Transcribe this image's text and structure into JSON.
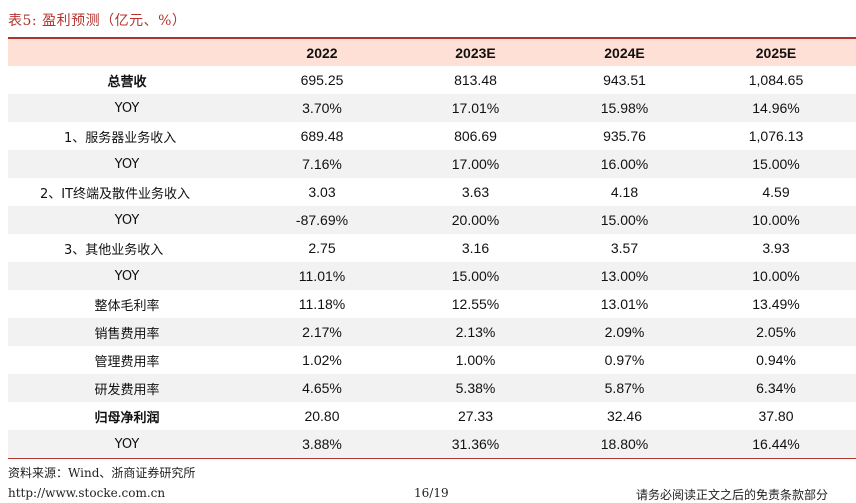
{
  "title": "表5:  盈利预测（亿元、%）",
  "table": {
    "headers": [
      "",
      "2022",
      "2023E",
      "2024E",
      "2025E"
    ],
    "rows": [
      {
        "label": "总营收",
        "values": [
          "695.25",
          "813.48",
          "943.51",
          "1,084.65"
        ],
        "bold": true
      },
      {
        "label": "YOY",
        "values": [
          "3.70%",
          "17.01%",
          "15.98%",
          "14.96%"
        ]
      },
      {
        "label": "1、服务器业务收入",
        "values": [
          "689.48",
          "806.69",
          "935.76",
          "1,076.13"
        ]
      },
      {
        "label": "YOY",
        "values": [
          "7.16%",
          "17.00%",
          "16.00%",
          "15.00%"
        ]
      },
      {
        "label": "2、IT终端及散件业务收入",
        "values": [
          "3.03",
          "3.63",
          "4.18",
          "4.59"
        ]
      },
      {
        "label": "YOY",
        "values": [
          "-87.69%",
          "20.00%",
          "15.00%",
          "10.00%"
        ]
      },
      {
        "label": "3、其他业务收入",
        "values": [
          "2.75",
          "3.16",
          "3.57",
          "3.93"
        ]
      },
      {
        "label": "YOY",
        "values": [
          "11.01%",
          "15.00%",
          "13.00%",
          "10.00%"
        ]
      },
      {
        "label": "整体毛利率",
        "values": [
          "11.18%",
          "12.55%",
          "13.01%",
          "13.49%"
        ]
      },
      {
        "label": "销售费用率",
        "values": [
          "2.17%",
          "2.13%",
          "2.09%",
          "2.05%"
        ]
      },
      {
        "label": "管理费用率",
        "values": [
          "1.02%",
          "1.00%",
          "0.97%",
          "0.94%"
        ]
      },
      {
        "label": "研发费用率",
        "values": [
          "4.65%",
          "5.38%",
          "5.87%",
          "6.34%"
        ]
      },
      {
        "label": "归母净利润",
        "values": [
          "20.80",
          "27.33",
          "32.46",
          "37.80"
        ],
        "bold": true
      },
      {
        "label": "YOY",
        "values": [
          "3.88%",
          "31.36%",
          "18.80%",
          "16.44%"
        ]
      }
    ]
  },
  "source": "资料来源：Wind、浙商证券研究所",
  "footer": {
    "url": "http://www.stocke.com.cn",
    "page": "16/19",
    "disclaimer": "请务必阅读正文之后的免责条款部分"
  }
}
